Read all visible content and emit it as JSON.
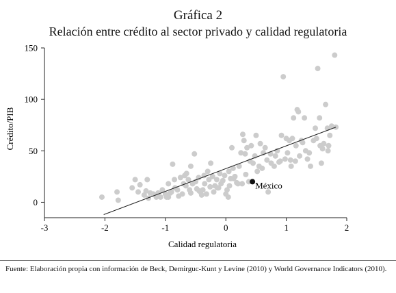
{
  "header": {
    "title": "Gráfica 2",
    "subtitle": "Relación entre crédito al sector privado y calidad regulatoria"
  },
  "footer": {
    "source": "Fuente: Elaboración propia con información de Beck, Demirguc-Kunt y Levine (2010) y World Governance Indicators (2010)."
  },
  "chart_data": {
    "type": "scatter",
    "title": "Gráfica 2",
    "subtitle": "Relación entre crédito al sector privado y calidad regulatoria",
    "xlabel": "Calidad regulatoria",
    "ylabel": "Crédito/PIB",
    "xlim": [
      -3,
      2
    ],
    "ylim": [
      -15,
      150
    ],
    "x_ticks": [
      "-3",
      "-2",
      "-1",
      "0",
      "1",
      "2"
    ],
    "y_ticks": [
      "0",
      "50",
      "100",
      "150"
    ],
    "x_tick_values": [
      -3,
      -2,
      -1,
      0,
      1,
      2
    ],
    "y_tick_values": [
      0,
      50,
      100,
      150
    ],
    "grid": false,
    "point_color": "#cccccc",
    "highlight_color": "#111111",
    "trendline": {
      "x1": -2.02,
      "y1": -12,
      "x2": 1.82,
      "y2": 73,
      "color": "#222222"
    },
    "highlight": {
      "label": "México",
      "x": 0.44,
      "y": 20
    },
    "series": [
      {
        "points": [
          [
            -2.05,
            5
          ],
          [
            -1.8,
            10
          ],
          [
            -1.78,
            2
          ],
          [
            -1.5,
            22
          ],
          [
            -1.45,
            10
          ],
          [
            -1.42,
            17
          ],
          [
            -1.35,
            7
          ],
          [
            -1.3,
            22
          ],
          [
            -1.28,
            4
          ],
          [
            -1.25,
            9
          ],
          [
            -1.2,
            8
          ],
          [
            -1.15,
            5
          ],
          [
            -1.12,
            9
          ],
          [
            -1.08,
            5
          ],
          [
            -1.05,
            12
          ],
          [
            -1.0,
            8
          ],
          [
            -0.98,
            5
          ],
          [
            -0.95,
            18
          ],
          [
            -0.92,
            9
          ],
          [
            -0.9,
            10
          ],
          [
            -0.88,
            37
          ],
          [
            -0.85,
            22
          ],
          [
            -0.8,
            12
          ],
          [
            -0.78,
            6
          ],
          [
            -0.75,
            24
          ],
          [
            -0.72,
            8
          ],
          [
            -0.7,
            18
          ],
          [
            -0.68,
            26
          ],
          [
            -0.65,
            28
          ],
          [
            -0.62,
            22
          ],
          [
            -0.6,
            12
          ],
          [
            -0.58,
            35
          ],
          [
            -0.55,
            18
          ],
          [
            -0.52,
            47
          ],
          [
            -0.5,
            20
          ],
          [
            -0.48,
            13
          ],
          [
            -0.45,
            24
          ],
          [
            -0.42,
            10
          ],
          [
            -0.4,
            7
          ],
          [
            -0.38,
            12
          ],
          [
            -0.35,
            18
          ],
          [
            -0.32,
            8
          ],
          [
            -0.3,
            30
          ],
          [
            -0.28,
            22
          ],
          [
            -0.25,
            38
          ],
          [
            -0.22,
            25
          ],
          [
            -0.2,
            10
          ],
          [
            -0.18,
            16
          ],
          [
            -0.15,
            22
          ],
          [
            -0.12,
            14
          ],
          [
            -0.1,
            28
          ],
          [
            -0.08,
            18
          ],
          [
            -0.05,
            21
          ],
          [
            -0.02,
            26
          ],
          [
            0.0,
            8
          ],
          [
            0.02,
            12
          ],
          [
            0.04,
            5
          ],
          [
            0.05,
            30
          ],
          [
            0.08,
            23
          ],
          [
            0.1,
            53
          ],
          [
            0.12,
            33
          ],
          [
            0.15,
            25
          ],
          [
            0.18,
            19
          ],
          [
            0.2,
            18
          ],
          [
            0.22,
            35
          ],
          [
            0.25,
            48
          ],
          [
            0.28,
            66
          ],
          [
            0.3,
            60
          ],
          [
            0.32,
            47
          ],
          [
            0.35,
            53
          ],
          [
            0.38,
            20
          ],
          [
            0.4,
            40
          ],
          [
            0.42,
            55
          ],
          [
            0.45,
            38
          ],
          [
            0.48,
            45
          ],
          [
            0.5,
            65
          ],
          [
            0.52,
            30
          ],
          [
            0.55,
            35
          ],
          [
            0.6,
            33
          ],
          [
            0.62,
            48
          ],
          [
            0.65,
            53
          ],
          [
            0.7,
            10
          ],
          [
            0.75,
            38
          ],
          [
            0.8,
            35
          ],
          [
            0.82,
            45
          ],
          [
            0.85,
            50
          ],
          [
            0.9,
            40
          ],
          [
            0.92,
            65
          ],
          [
            0.95,
            122
          ],
          [
            0.98,
            42
          ],
          [
            1.0,
            62
          ],
          [
            1.02,
            48
          ],
          [
            1.05,
            60
          ],
          [
            1.08,
            35
          ],
          [
            1.1,
            62
          ],
          [
            1.12,
            82
          ],
          [
            1.15,
            40
          ],
          [
            1.18,
            90
          ],
          [
            1.2,
            88
          ],
          [
            1.22,
            45
          ],
          [
            1.25,
            60
          ],
          [
            1.3,
            82
          ],
          [
            1.32,
            50
          ],
          [
            1.35,
            42
          ],
          [
            1.4,
            35
          ],
          [
            1.45,
            60
          ],
          [
            1.48,
            72
          ],
          [
            1.5,
            62
          ],
          [
            1.52,
            130
          ],
          [
            1.55,
            82
          ],
          [
            1.58,
            38
          ],
          [
            1.6,
            52
          ],
          [
            1.62,
            57
          ],
          [
            1.65,
            95
          ],
          [
            1.68,
            72
          ],
          [
            1.7,
            55
          ],
          [
            1.72,
            65
          ],
          [
            1.75,
            74
          ],
          [
            1.8,
            143
          ],
          [
            1.82,
            73
          ],
          [
            -1.55,
            14
          ],
          [
            -1.32,
            11
          ],
          [
            -0.95,
            5
          ],
          [
            -0.66,
            16
          ],
          [
            -0.44,
            11
          ],
          [
            -0.36,
            26
          ],
          [
            -0.14,
            14
          ],
          [
            0.13,
            23
          ],
          [
            0.27,
            18
          ],
          [
            0.57,
            57
          ],
          [
            0.74,
            47
          ],
          [
            0.88,
            39
          ],
          [
            1.07,
            41
          ],
          [
            1.16,
            55
          ],
          [
            1.38,
            48
          ],
          [
            1.56,
            55
          ],
          [
            1.69,
            50
          ],
          [
            -0.84,
            14
          ],
          [
            -0.58,
            9
          ],
          [
            -0.26,
            15
          ],
          [
            0.06,
            16
          ],
          [
            0.33,
            27
          ],
          [
            0.68,
            41
          ],
          [
            1.27,
            58
          ]
        ]
      }
    ]
  }
}
